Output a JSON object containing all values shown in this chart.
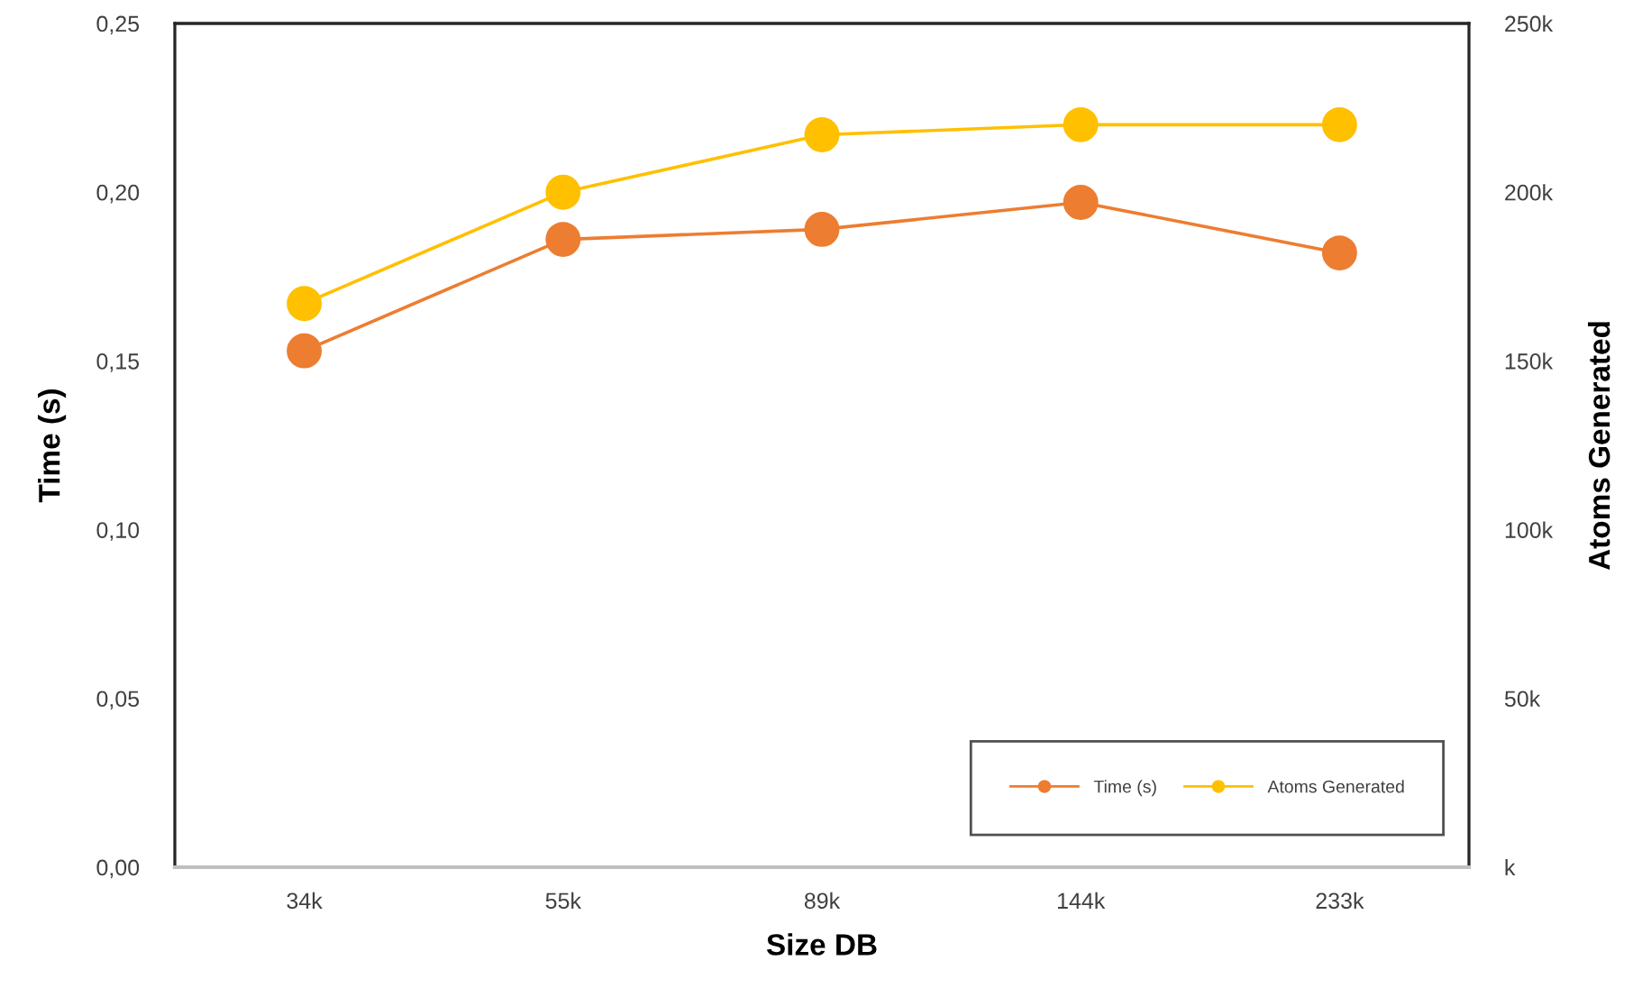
{
  "chart_data": {
    "type": "line",
    "xlabel": "Size DB",
    "ylabel": "Time (s)",
    "y2label": "Atoms Generated",
    "categories": [
      "34k",
      "55k",
      "89k",
      "144k",
      "233k"
    ],
    "series": [
      {
        "name": "Time (s)",
        "color": "#ed7d31",
        "values": [
          0.153,
          0.186,
          0.189,
          0.197,
          0.182
        ]
      },
      {
        "name": "Atoms Generated",
        "color": "#ffc000",
        "axis": "y2",
        "values": [
          167000,
          200000,
          217000,
          220000,
          220000
        ]
      }
    ],
    "ylim": [
      0,
      0.25
    ],
    "yticks": [
      {
        "value": 0,
        "label": "0,00"
      },
      {
        "value": 0.05,
        "label": "0,05"
      },
      {
        "value": 0.1,
        "label": "0,10"
      },
      {
        "value": 0.15,
        "label": "0,15"
      },
      {
        "value": 0.2,
        "label": "0,20"
      },
      {
        "value": 0.25,
        "label": "0,25"
      }
    ],
    "y2lim": [
      0,
      250000
    ],
    "y2ticks": [
      {
        "value": 0,
        "label": "k"
      },
      {
        "value": 50000,
        "label": "50k"
      },
      {
        "value": 100000,
        "label": "100k"
      },
      {
        "value": 150000,
        "label": "150k"
      },
      {
        "value": 200000,
        "label": "200k"
      },
      {
        "value": 250000,
        "label": "250k"
      }
    ],
    "marker": "circle",
    "line_style": "solid",
    "legend": "bottom right",
    "grid": false
  }
}
